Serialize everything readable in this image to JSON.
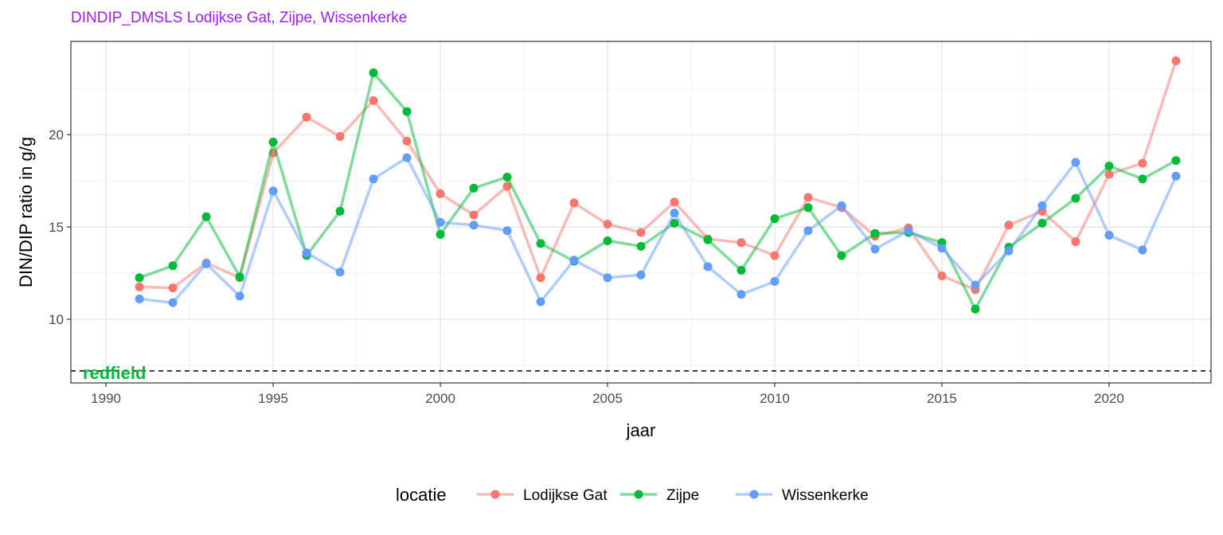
{
  "title": "DINDIP_DMSLS Lodijkse Gat, Zijpe, Wissenkerke",
  "chart_data": {
    "type": "line",
    "xlabel": "jaar",
    "ylabel": "DIN/DIP ratio in g/g",
    "xlim": [
      1989.95,
      1993.0
    ],
    "xticks": [
      1990,
      1995,
      2000,
      2005,
      2010,
      2015,
      2020
    ],
    "ylim": [
      6.55,
      25.05
    ],
    "yticks": [
      10,
      15,
      20
    ],
    "grid": true,
    "legend": {
      "title": "locatie",
      "position": "bottom"
    },
    "reference_line": {
      "label": "redfield",
      "y": 7.2,
      "style": "dashed",
      "color": "#00ba38"
    },
    "x": [
      1991,
      1992,
      1993,
      1994,
      1995,
      1996,
      1997,
      1998,
      1999,
      2000,
      2001,
      2002,
      2003,
      2004,
      2005,
      2006,
      2007,
      2008,
      2009,
      2010,
      2011,
      2012,
      2013,
      2014,
      2015,
      2016,
      2017,
      2018,
      2019,
      2020,
      2021,
      2022
    ],
    "series": [
      {
        "name": "Lodijkse Gat",
        "color": "#f8766d",
        "values": [
          11.75,
          11.7,
          13.05,
          12.25,
          19.0,
          20.95,
          19.9,
          21.85,
          19.65,
          16.8,
          15.65,
          17.2,
          12.25,
          16.3,
          15.15,
          14.7,
          16.35,
          14.35,
          14.15,
          13.45,
          16.6,
          16.05,
          14.5,
          14.95,
          12.35,
          11.6,
          15.1,
          15.85,
          14.2,
          17.85,
          18.45,
          24.0
        ]
      },
      {
        "name": "Zijpe",
        "color": "#00ba38",
        "values": [
          12.25,
          12.9,
          15.55,
          12.3,
          19.6,
          13.45,
          15.85,
          23.35,
          21.25,
          14.6,
          17.1,
          17.7,
          14.1,
          13.15,
          14.25,
          13.95,
          15.2,
          14.3,
          12.65,
          15.45,
          16.05,
          13.45,
          14.65,
          14.7,
          14.15,
          10.55,
          13.9,
          15.2,
          16.55,
          18.3,
          17.6,
          18.6
        ]
      },
      {
        "name": "Wissenkerke",
        "color": "#619cff",
        "values": [
          11.1,
          10.9,
          13.0,
          11.25,
          16.95,
          13.6,
          12.55,
          17.6,
          18.75,
          15.25,
          15.1,
          14.8,
          10.95,
          13.2,
          12.25,
          12.4,
          15.75,
          12.85,
          11.35,
          12.05,
          14.8,
          16.15,
          13.8,
          14.8,
          13.85,
          11.85,
          13.7,
          16.15,
          18.5,
          14.55,
          13.75,
          17.75
        ]
      }
    ]
  }
}
